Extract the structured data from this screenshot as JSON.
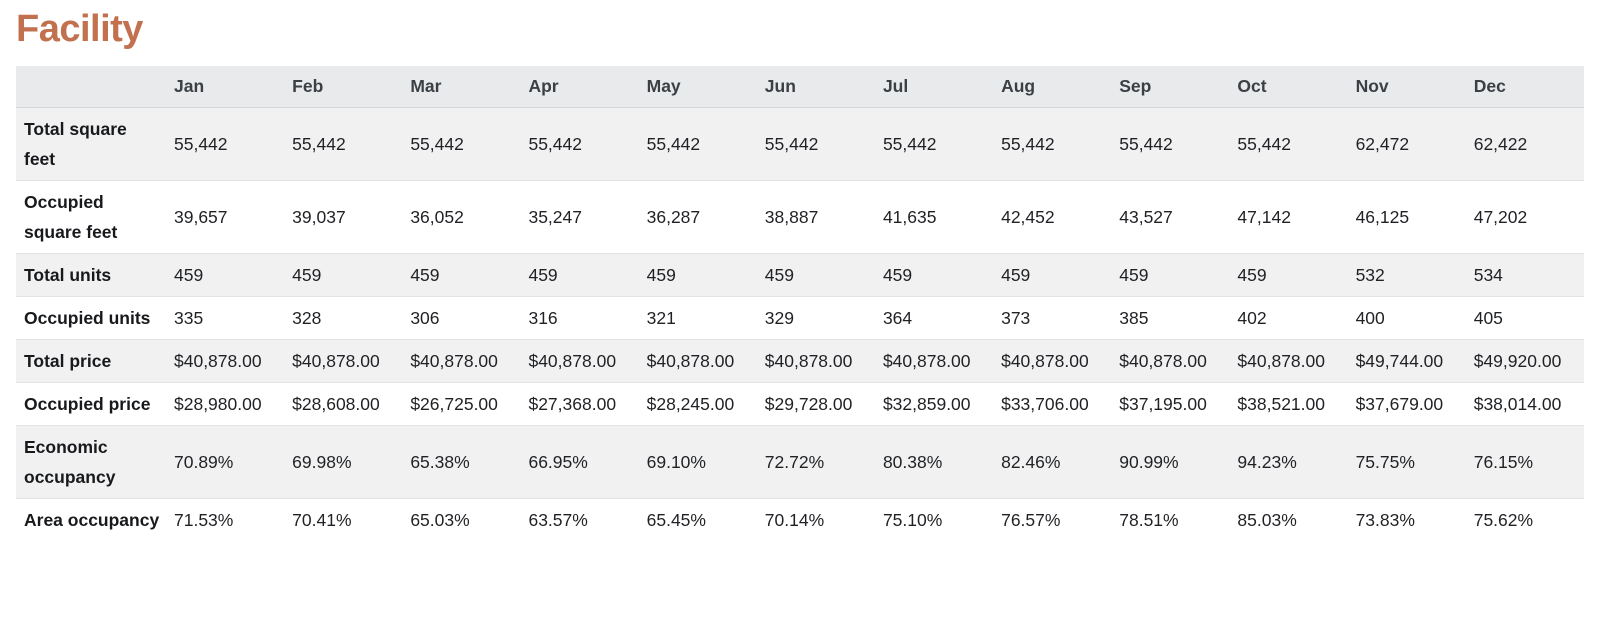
{
  "page": {
    "title": "Facility"
  },
  "colors": {
    "title": "#C1714E",
    "header_bg": "#E9EAEC",
    "stripe_bg": "#F1F1F2"
  },
  "table": {
    "corner_label": "",
    "months": [
      "Jan",
      "Feb",
      "Mar",
      "Apr",
      "May",
      "Jun",
      "Jul",
      "Aug",
      "Sep",
      "Oct",
      "Nov",
      "Dec"
    ],
    "rows": [
      {
        "label": "Total square feet",
        "values": [
          "55,442",
          "55,442",
          "55,442",
          "55,442",
          "55,442",
          "55,442",
          "55,442",
          "55,442",
          "55,442",
          "55,442",
          "62,472",
          "62,422"
        ]
      },
      {
        "label": "Occupied square feet",
        "values": [
          "39,657",
          "39,037",
          "36,052",
          "35,247",
          "36,287",
          "38,887",
          "41,635",
          "42,452",
          "43,527",
          "47,142",
          "46,125",
          "47,202"
        ]
      },
      {
        "label": "Total units",
        "values": [
          "459",
          "459",
          "459",
          "459",
          "459",
          "459",
          "459",
          "459",
          "459",
          "459",
          "532",
          "534"
        ]
      },
      {
        "label": "Occupied units",
        "values": [
          "335",
          "328",
          "306",
          "316",
          "321",
          "329",
          "364",
          "373",
          "385",
          "402",
          "400",
          "405"
        ]
      },
      {
        "label": "Total price",
        "values": [
          "$40,878.00",
          "$40,878.00",
          "$40,878.00",
          "$40,878.00",
          "$40,878.00",
          "$40,878.00",
          "$40,878.00",
          "$40,878.00",
          "$40,878.00",
          "$40,878.00",
          "$49,744.00",
          "$49,920.00"
        ]
      },
      {
        "label": "Occupied price",
        "values": [
          "$28,980.00",
          "$28,608.00",
          "$26,725.00",
          "$27,368.00",
          "$28,245.00",
          "$29,728.00",
          "$32,859.00",
          "$33,706.00",
          "$37,195.00",
          "$38,521.00",
          "$37,679.00",
          "$38,014.00"
        ]
      },
      {
        "label": "Economic occupancy",
        "values": [
          "70.89%",
          "69.98%",
          "65.38%",
          "66.95%",
          "69.10%",
          "72.72%",
          "80.38%",
          "82.46%",
          "90.99%",
          "94.23%",
          "75.75%",
          "76.15%"
        ]
      },
      {
        "label": "Area occupancy",
        "values": [
          "71.53%",
          "70.41%",
          "65.03%",
          "63.57%",
          "65.45%",
          "70.14%",
          "75.10%",
          "76.57%",
          "78.51%",
          "85.03%",
          "73.83%",
          "75.62%"
        ]
      }
    ]
  }
}
